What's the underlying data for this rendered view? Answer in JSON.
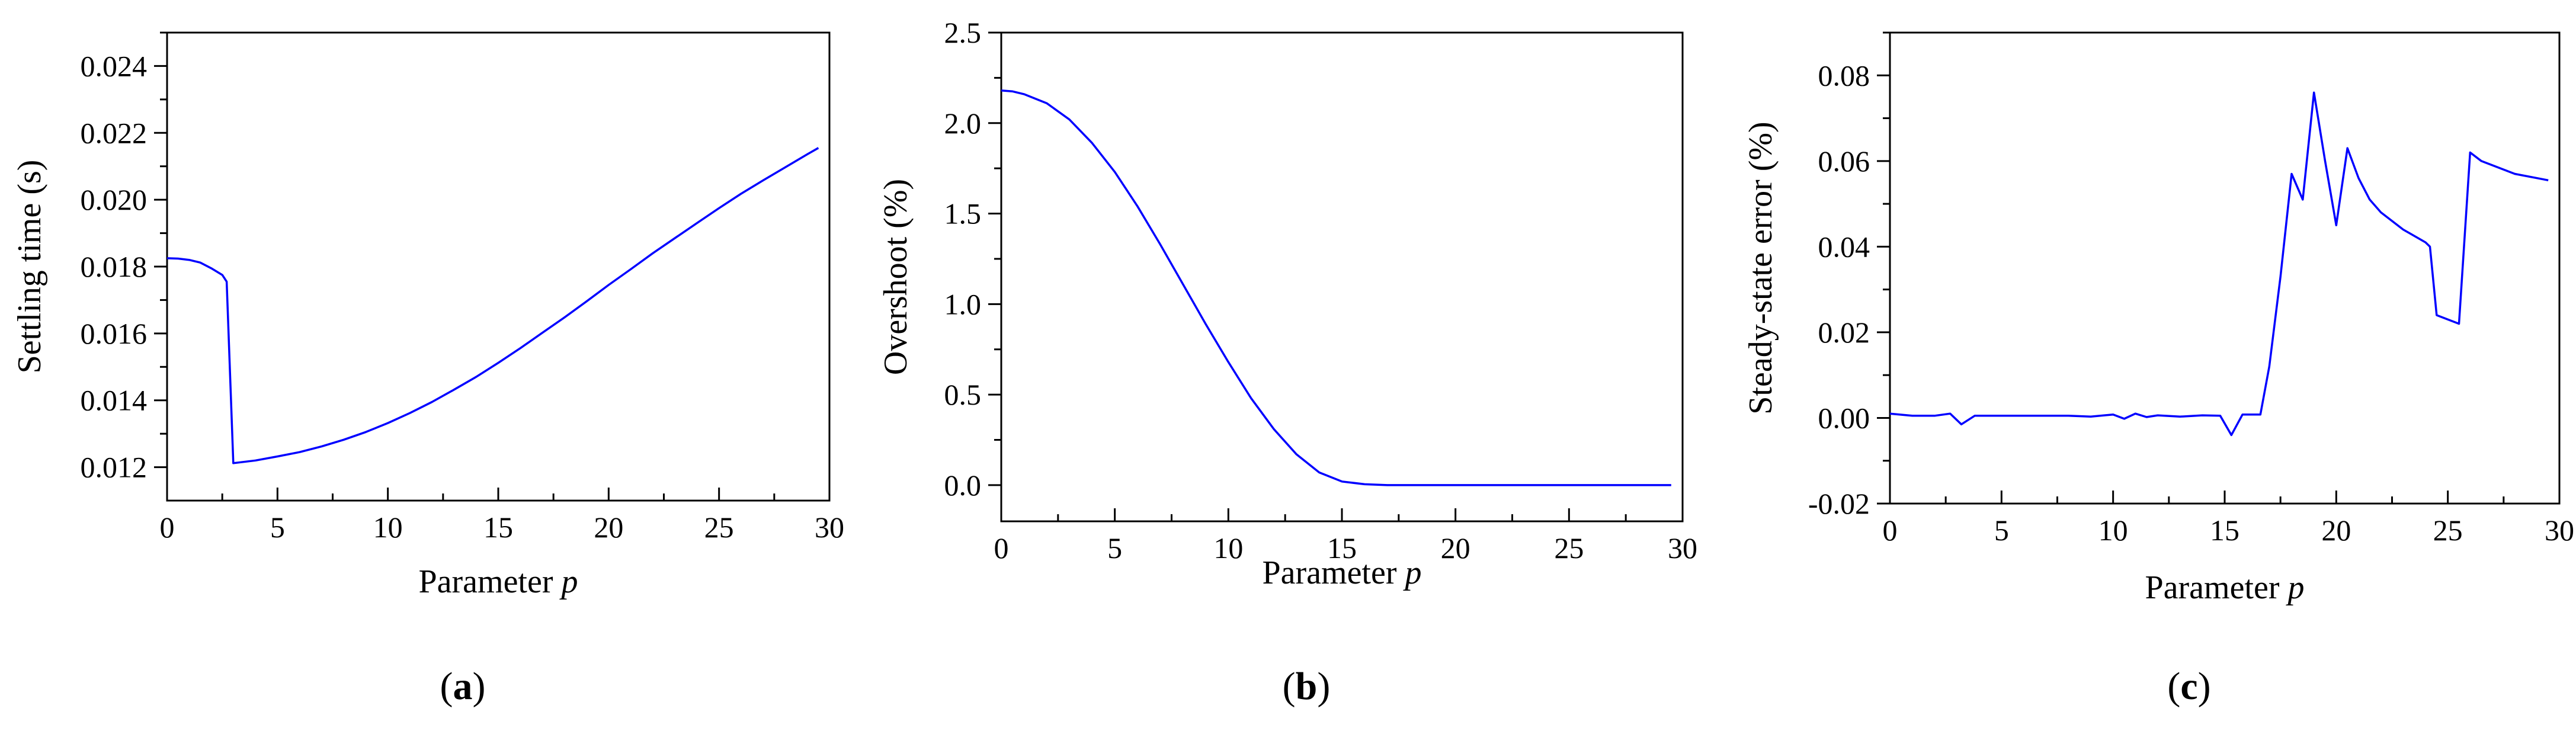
{
  "chart_data": [
    {
      "type": "line",
      "panel": "a",
      "caption": [
        "(",
        "a",
        ")"
      ],
      "xlabel": "Parameter",
      "xlabel_var": "p",
      "ylabel": "Settling time (s)",
      "xlim": [
        0,
        30
      ],
      "ylim": [
        0.011,
        0.025
      ],
      "xticks": [
        0,
        5,
        10,
        15,
        20,
        25,
        30
      ],
      "xtick_labels": [
        "0",
        "5",
        "10",
        "15",
        "20",
        "25",
        "30"
      ],
      "yticks": [
        0.012,
        0.014,
        0.016,
        0.018,
        0.02,
        0.022,
        0.024
      ],
      "ytick_labels": [
        "0.012",
        "0.014",
        "0.016",
        "0.018",
        "0.020",
        "0.022",
        "0.024"
      ],
      "grid": false,
      "series": [
        {
          "color": "#0000ff",
          "x": [
            0,
            0.5,
            1,
            1.5,
            2,
            2.5,
            2.7,
            3,
            4,
            5,
            6,
            7,
            8,
            9,
            10,
            11,
            12,
            13,
            14,
            15,
            16,
            17,
            18,
            19,
            20,
            21,
            22,
            23,
            24,
            25,
            26,
            27,
            28,
            29,
            29.5
          ],
          "y": [
            0.01825,
            0.01824,
            0.0182,
            0.01812,
            0.01795,
            0.01775,
            0.01755,
            0.01212,
            0.0122,
            0.01232,
            0.01245,
            0.01262,
            0.01282,
            0.01305,
            0.01332,
            0.01362,
            0.01395,
            0.01432,
            0.0147,
            0.01512,
            0.01556,
            0.01602,
            0.01648,
            0.01696,
            0.01745,
            0.01792,
            0.0184,
            0.01885,
            0.0193,
            0.01975,
            0.02018,
            0.02058,
            0.02097,
            0.02136,
            0.02155
          ]
        }
      ]
    },
    {
      "type": "line",
      "panel": "b",
      "caption": [
        "(",
        "b",
        ")"
      ],
      "xlabel": "Parameter",
      "xlabel_var": "p",
      "ylabel": "Overshoot (%)",
      "xlim": [
        0,
        30
      ],
      "ylim": [
        -0.2,
        2.5
      ],
      "xticks": [
        0,
        5,
        10,
        15,
        20,
        25,
        30
      ],
      "xtick_labels": [
        "0",
        "5",
        "10",
        "15",
        "20",
        "25",
        "30"
      ],
      "yticks": [
        0,
        0.5,
        1,
        1.5,
        2,
        2.5
      ],
      "ytick_labels": [
        "0.0",
        "0.5",
        "1.0",
        "1.5",
        "2.0",
        "2.5"
      ],
      "grid": false,
      "series": [
        {
          "color": "#0000ff",
          "x": [
            0,
            0.5,
            1,
            2,
            3,
            4,
            5,
            6,
            7,
            8,
            9,
            10,
            11,
            12,
            13,
            14,
            15,
            16,
            17,
            18,
            20,
            22,
            25,
            28,
            29.5
          ],
          "y": [
            2.18,
            2.175,
            2.16,
            2.11,
            2.02,
            1.89,
            1.73,
            1.54,
            1.33,
            1.11,
            0.89,
            0.68,
            0.48,
            0.31,
            0.17,
            0.07,
            0.02,
            0.005,
            0.0,
            0.0,
            0.0,
            0.0,
            0.0,
            0.0,
            0.0
          ]
        }
      ]
    },
    {
      "type": "line",
      "panel": "c",
      "caption": [
        "(",
        "c",
        ")"
      ],
      "xlabel": "Parameter",
      "xlabel_var": "p",
      "ylabel": "Steady-state error (%)",
      "xlim": [
        0,
        30
      ],
      "ylim": [
        -0.02,
        0.09
      ],
      "xticks": [
        0,
        5,
        10,
        15,
        20,
        25,
        30
      ],
      "xtick_labels": [
        "0",
        "5",
        "10",
        "15",
        "20",
        "25",
        "30"
      ],
      "yticks": [
        -0.02,
        0,
        0.02,
        0.04,
        0.06,
        0.08
      ],
      "ytick_labels": [
        "-0.02",
        "0.00",
        "0.02",
        "0.04",
        "0.06",
        "0.08"
      ],
      "grid": false,
      "series": [
        {
          "color": "#0000ff",
          "x": [
            0,
            1,
            2,
            2.7,
            3.2,
            3.8,
            5,
            6,
            7,
            8,
            9,
            10,
            10.5,
            11,
            11.5,
            12,
            13,
            14,
            14.8,
            15.3,
            15.8,
            16.6,
            17,
            17.5,
            18,
            18.5,
            19,
            19.5,
            20,
            20.5,
            21,
            21.5,
            22,
            23,
            24,
            24.2,
            24.5,
            25.5,
            26,
            26.5,
            27,
            28,
            29,
            29.5
          ],
          "y": [
            0.001,
            0.0005,
            0.0005,
            0.001,
            -0.0015,
            0.0005,
            0.0005,
            0.0005,
            0.0005,
            0.0005,
            0.0003,
            0.0008,
            -0.0002,
            0.001,
            0.0002,
            0.0006,
            0.0003,
            0.0006,
            0.0005,
            -0.004,
            0.0008,
            0.0008,
            0.012,
            0.033,
            0.057,
            0.051,
            0.076,
            0.06,
            0.045,
            0.063,
            0.056,
            0.051,
            0.048,
            0.044,
            0.041,
            0.04,
            0.024,
            0.022,
            0.062,
            0.06,
            0.059,
            0.057,
            0.056,
            0.0555
          ]
        }
      ]
    }
  ]
}
